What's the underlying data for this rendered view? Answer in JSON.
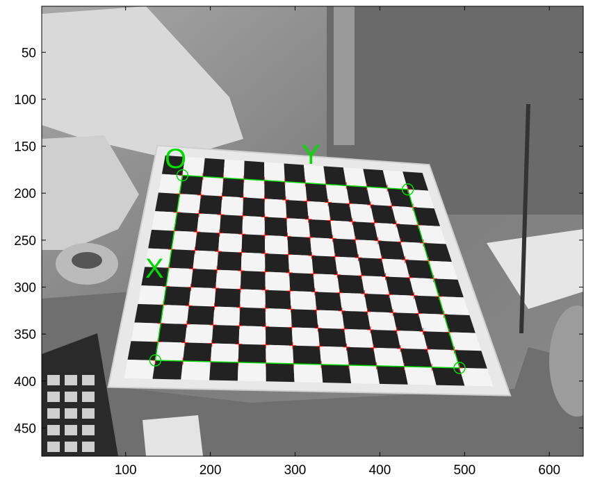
{
  "figure": {
    "x_ticks": [
      "100",
      "200",
      "300",
      "400",
      "500",
      "600"
    ],
    "y_ticks": [
      "50",
      "100",
      "150",
      "200",
      "250",
      "300",
      "350",
      "400",
      "450"
    ],
    "x_range": [
      1,
      640
    ],
    "y_range": [
      1,
      480
    ],
    "x_tick_values": [
      100,
      200,
      300,
      400,
      500,
      600
    ],
    "y_tick_values": [
      50,
      100,
      150,
      200,
      250,
      300,
      350,
      400,
      450
    ]
  },
  "annotations": {
    "origin_label": "O",
    "x_label": "X",
    "y_label": "Y",
    "color": "#00dd00",
    "corner_color": "#ff2222"
  },
  "corners_image_coords": {
    "O": [
      167,
      181
    ],
    "Y_end": [
      433,
      196
    ],
    "X_end": [
      135,
      378
    ],
    "far": [
      494,
      386
    ]
  },
  "grid": {
    "rows": 12,
    "cols": 13
  },
  "colors": {
    "border_gray": "#3a3a3a",
    "board_dark": "#222222",
    "board_light": "#f4f4f4",
    "board_base": "#e8e8e8",
    "background": "#8f8f8f"
  }
}
